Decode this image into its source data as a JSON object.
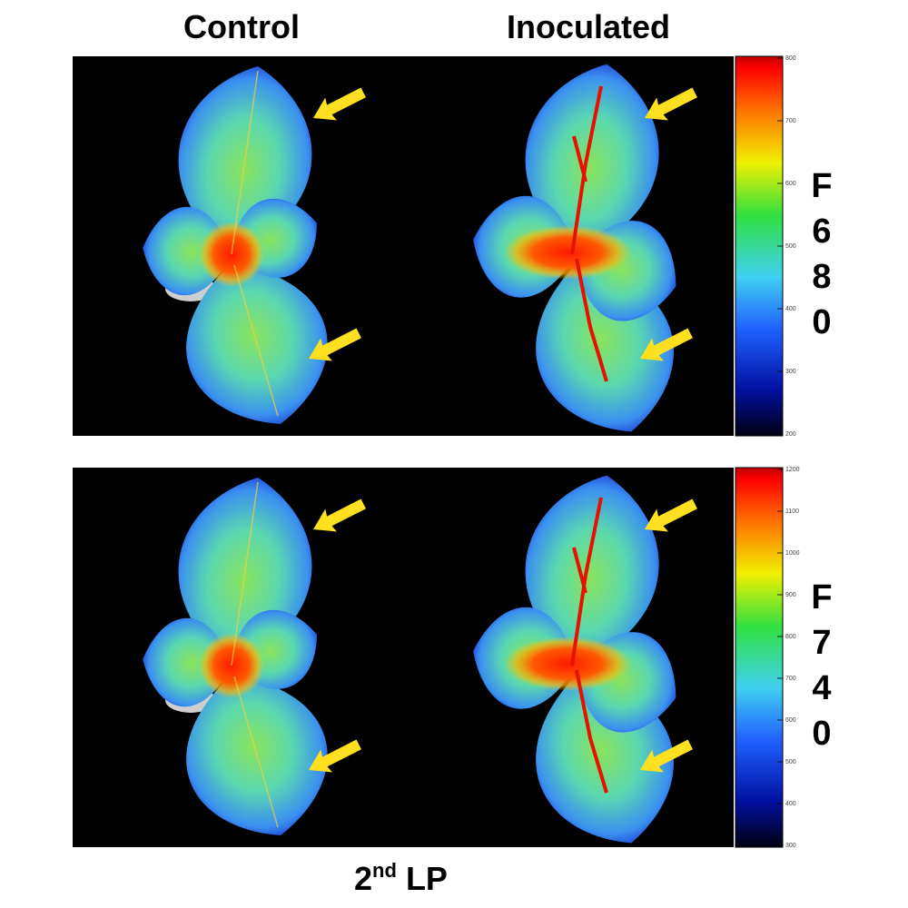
{
  "column_titles": [
    "Control",
    "Inoculated"
  ],
  "panels": [
    {
      "label": "F680",
      "colorbar_ticks": [
        200,
        300,
        400,
        500,
        600,
        700,
        800
      ]
    },
    {
      "label": "F740",
      "colorbar_ticks": [
        300,
        400,
        500,
        600,
        700,
        800,
        900,
        1000,
        1100,
        1200
      ]
    }
  ],
  "footer": {
    "main": "2",
    "superscript": "nd",
    "rest": "LP"
  }
}
